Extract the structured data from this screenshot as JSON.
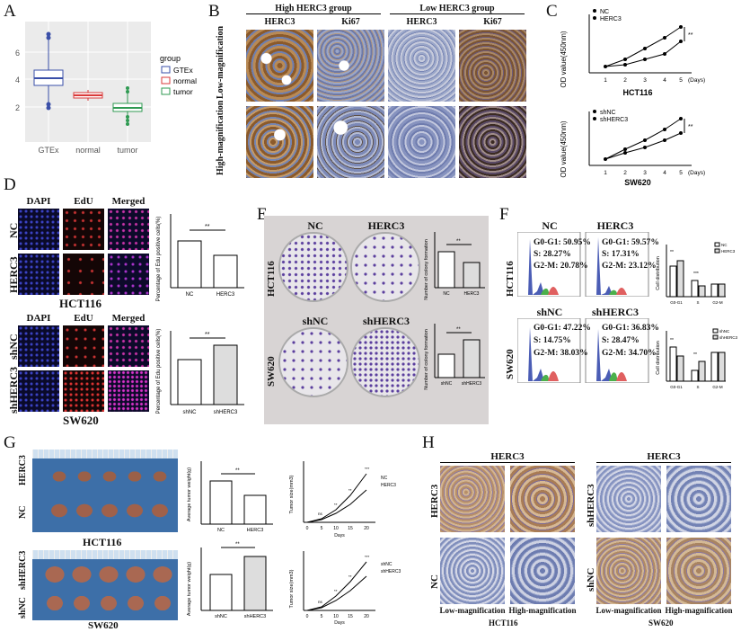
{
  "panels": {
    "A": "A",
    "B": "B",
    "C": "C",
    "D": "D",
    "E": "E",
    "F": "F",
    "G": "G",
    "H": "H"
  },
  "colors": {
    "gtex": "#3a4fa8",
    "normal": "#d93a3a",
    "tumor": "#2f9a52",
    "brown": "#8b5a2b",
    "purple": "#5b3f9e"
  },
  "panel_a": {
    "legend_title": "group",
    "legend": [
      "GTEx",
      "normal",
      "tumor"
    ],
    "yticks": [
      "2",
      "4",
      "6"
    ],
    "xticks": [
      "GTEx",
      "normal",
      "tumor"
    ]
  },
  "panel_b": {
    "high_group": "High HERC3 group",
    "low_group": "Low HERC3 group",
    "cols": [
      "HERC3",
      "Ki67",
      "HERC3",
      "Ki67"
    ],
    "row_low": "Low-magnification",
    "row_high": "High-magnification"
  },
  "panel_c": {
    "top_legend": [
      "NC",
      "HERC3"
    ],
    "bottom_legend": [
      "shNC",
      "shHERC3"
    ],
    "ylabel": "OD value(450nm)",
    "xticks": [
      "1",
      "2",
      "3",
      "4",
      "5"
    ],
    "xunit": "(Days)",
    "top_cell": "HCT116",
    "bottom_cell": "SW620",
    "sig": "**"
  },
  "panel_d": {
    "cols": [
      "DAPI",
      "EdU",
      "Merged"
    ],
    "top_rows": [
      "NC",
      "HERC3"
    ],
    "bottom_rows": [
      "shNC",
      "shHERC3"
    ],
    "top_cell": "HCT116",
    "bottom_cell": "SW620",
    "ylabel": "Percentage of Edu positive cells(%)",
    "top_bars": [
      "NC",
      "HERC3"
    ],
    "bottom_bars": [
      "shNC",
      "shHERC3"
    ],
    "sig": "**"
  },
  "panel_e": {
    "top_labels": [
      "NC",
      "HERC3"
    ],
    "bottom_labels": [
      "shNC",
      "shHERC3"
    ],
    "top_cell": "HCT116",
    "bottom_cell": "SW620",
    "ylabel": "Number of colony formation",
    "top_bars": [
      "NC",
      "HERC3"
    ],
    "bottom_bars": [
      "shNC",
      "shHERC3"
    ],
    "sig": "**"
  },
  "panel_f": {
    "top_labels": [
      "NC",
      "HERC3"
    ],
    "bottom_labels": [
      "shNC",
      "shHERC3"
    ],
    "top_cell": "HCT116",
    "bottom_cell": "SW620",
    "nc_stats": [
      "G0-G1: 50.95%",
      "S: 28.27%",
      "G2-M: 20.78%"
    ],
    "herc3_stats": [
      "G0-G1: 59.57%",
      "S: 17.31%",
      "G2-M: 23.12%"
    ],
    "shnc_stats": [
      "G0-G1: 47.22%",
      "S: 14.75%",
      "G2-M: 38.03%"
    ],
    "shherc3_stats": [
      "G0-G1: 36.83%",
      "S: 28.47%",
      "G2-M: 34.70%"
    ],
    "ylabel": "Cell distribution",
    "xcats": [
      "G0-G1",
      "S",
      "G2-M"
    ],
    "top_legend": [
      "NC",
      "HERC3"
    ],
    "bottom_legend": [
      "shNC",
      "shHERC3"
    ],
    "sig": "**",
    "sig3": "***"
  },
  "panel_g": {
    "top_rows": [
      "HERC3",
      "NC"
    ],
    "bottom_rows": [
      "shHERC3",
      "shNC"
    ],
    "top_cell": "HCT116",
    "bottom_cell": "SW620",
    "weight_ylabel": "Average tumor weight(g)",
    "volume_ylabel": "Tumor size(mm3)",
    "top_bars": [
      "NC",
      "HERC3"
    ],
    "bottom_bars": [
      "shNC",
      "shHERC3"
    ],
    "top_legend": [
      "NC",
      "HERC3"
    ],
    "bottom_legend": [
      "shNC",
      "shHERC3"
    ],
    "days_label": "Days",
    "day_ticks": [
      "0",
      "5",
      "10",
      "15",
      "20"
    ],
    "sig": "**",
    "sig3": "***",
    "ns": "ns"
  },
  "panel_h": {
    "header": "HERC3",
    "left_rows": [
      "HERC3",
      "NC"
    ],
    "right_rows": [
      "shHERC3",
      "shNC"
    ],
    "col_low": "Low-magnification",
    "col_high": "High-magnification",
    "left_cell": "HCT116",
    "right_cell": "SW620"
  }
}
